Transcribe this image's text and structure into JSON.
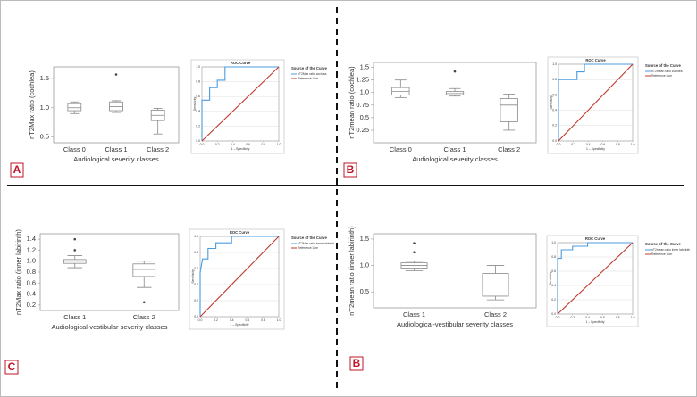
{
  "chart_data": [
    {
      "type": "box",
      "panel_label": "A",
      "ylabel": "nT2Max ratio (cochlea)",
      "xlabel": "Audiological severity classes",
      "categories": [
        "Class 0",
        "Class 1",
        "Class 2"
      ],
      "ylim": [
        0.4,
        1.7
      ],
      "yticks": [
        0.5,
        {
          "value": 1,
          "label": "1.0"
        },
        1.5
      ],
      "boxes": [
        {
          "whisker_low": 0.9,
          "q1": 0.95,
          "median": 1.0,
          "q3": 1.07,
          "whisker_high": 1.1,
          "outliers": []
        },
        {
          "whisker_low": 0.92,
          "q1": 0.95,
          "median": 1.02,
          "q3": 1.1,
          "whisker_high": 1.12,
          "outliers": [
            1.57
          ]
        },
        {
          "whisker_low": 0.55,
          "q1": 0.78,
          "median": 0.87,
          "q3": 0.96,
          "whisker_high": 0.99,
          "outliers": []
        }
      ]
    },
    {
      "type": "roc",
      "title": "ROC Curve",
      "xlabel": "1 – Specificity",
      "ylabel": "Sensitivity",
      "legend_title": "Source of the Curve",
      "xlim": [
        0,
        1
      ],
      "ylim": [
        0,
        1
      ],
      "xticks": [
        {
          "value": 0,
          "label": "0.0"
        },
        0.2,
        0.4,
        0.6,
        0.8,
        {
          "value": 1,
          "label": "1.0"
        }
      ],
      "yticks": [
        {
          "value": 0,
          "label": "0.0"
        },
        0.2,
        0.4,
        0.6,
        0.8,
        {
          "value": 1,
          "label": "1.0"
        }
      ],
      "grid": true,
      "series": [
        {
          "name": "nT2Max ratio cochlea",
          "color": "#4a9be0",
          "x": [
            0,
            0,
            0.1,
            0.1,
            0.2,
            0.2,
            0.3,
            0.3,
            1
          ],
          "values": [
            0,
            0.55,
            0.55,
            0.72,
            0.72,
            0.82,
            0.82,
            1,
            1
          ]
        },
        {
          "name": "Reference Line",
          "color": "#c0392b",
          "x": [
            0,
            1
          ],
          "values": [
            0,
            1
          ]
        }
      ]
    },
    {
      "type": "box",
      "panel_label": "B",
      "ylabel": "nT2mean ratio (cochlea)",
      "xlabel": "Audiological severity classes",
      "categories": [
        "Class 0",
        "Class 1",
        "Class 2"
      ],
      "ylim": [
        0,
        1.6
      ],
      "yticks": [
        0.25,
        0.5,
        0.75,
        {
          "value": 1,
          "label": "1.0"
        },
        1.25,
        1.5
      ],
      "boxes": [
        {
          "whisker_low": 0.9,
          "q1": 0.95,
          "median": 1.02,
          "q3": 1.1,
          "whisker_high": 1.25,
          "outliers": []
        },
        {
          "whisker_low": 0.93,
          "q1": 0.95,
          "median": 0.98,
          "q3": 1.02,
          "whisker_high": 1.08,
          "outliers": [
            1.42
          ]
        },
        {
          "whisker_low": 0.25,
          "q1": 0.42,
          "median": 0.75,
          "q3": 0.88,
          "whisker_high": 0.97,
          "outliers": []
        }
      ]
    },
    {
      "type": "roc",
      "title": "ROC Curve",
      "xlabel": "1 – Specificity",
      "ylabel": "Sensitivity",
      "legend_title": "Source of the Curve",
      "xlim": [
        0,
        1
      ],
      "ylim": [
        0,
        1
      ],
      "xticks": [
        {
          "value": 0,
          "label": "0.0"
        },
        0.2,
        0.4,
        0.6,
        0.8,
        {
          "value": 1,
          "label": "1.0"
        }
      ],
      "yticks": [
        {
          "value": 0,
          "label": "0.0"
        },
        0.2,
        0.4,
        0.6,
        0.8,
        {
          "value": 1,
          "label": "1.0"
        }
      ],
      "grid": true,
      "series": [
        {
          "name": "nT2mean ratio cochlea",
          "color": "#4a9be0",
          "x": [
            0,
            0,
            0.25,
            0.25,
            0.35,
            0.35,
            1
          ],
          "values": [
            0,
            0.8,
            0.8,
            0.9,
            0.9,
            1,
            1
          ]
        },
        {
          "name": "Reference Line",
          "color": "#c0392b",
          "x": [
            0,
            1
          ],
          "values": [
            0,
            1
          ]
        }
      ]
    },
    {
      "type": "box",
      "panel_label": "C",
      "ylabel": "nT2Max ratio (inner labirinth)",
      "xlabel": "Audiological-vestibular severity classes",
      "categories": [
        "Class 1",
        "Class 2"
      ],
      "ylim": [
        0.1,
        1.5
      ],
      "yticks": [
        0.2,
        0.4,
        0.6,
        0.8,
        {
          "value": 1,
          "label": "1.0"
        },
        1.2,
        1.4
      ],
      "boxes": [
        {
          "whisker_low": 0.88,
          "q1": 0.96,
          "median": 1.0,
          "q3": 1.03,
          "whisker_high": 1.1,
          "outliers": [
            1.2,
            1.4
          ]
        },
        {
          "whisker_low": 0.52,
          "q1": 0.72,
          "median": 0.85,
          "q3": 0.95,
          "whisker_high": 1.0,
          "outliers": [
            0.25
          ]
        }
      ]
    },
    {
      "type": "roc",
      "title": "ROC Curve",
      "xlabel": "1 – Specificity",
      "ylabel": "Sensitivity",
      "legend_title": "Source of the Curve",
      "xlim": [
        0,
        1
      ],
      "ylim": [
        0,
        1
      ],
      "xticks": [
        {
          "value": 0,
          "label": "0.0"
        },
        0.2,
        0.4,
        0.6,
        0.8,
        {
          "value": 1,
          "label": "1.0"
        }
      ],
      "yticks": [
        {
          "value": 0,
          "label": "0.0"
        },
        0.2,
        0.4,
        0.6,
        0.8,
        {
          "value": 1,
          "label": "1.0"
        }
      ],
      "grid": true,
      "series": [
        {
          "name": "nT2Max ratio inner labirinth",
          "color": "#4a9be0",
          "x": [
            0,
            0,
            0.03,
            0.1,
            0.1,
            0.2,
            0.2,
            0.4,
            0.4,
            1
          ],
          "values": [
            0,
            0.55,
            0.72,
            0.72,
            0.85,
            0.85,
            0.92,
            0.92,
            1,
            1
          ]
        },
        {
          "name": "Reference Line",
          "color": "#c0392b",
          "x": [
            0,
            1
          ],
          "values": [
            0,
            1
          ]
        }
      ]
    },
    {
      "type": "box",
      "panel_label": "B",
      "ylabel": "nT2mean ratio (inner labirinth)",
      "xlabel": "Audiological-vestibular severity classes",
      "categories": [
        "Class 1",
        "Class 2"
      ],
      "ylim": [
        0.2,
        1.6
      ],
      "yticks": [
        0.5,
        {
          "value": 1,
          "label": "1.0"
        },
        1.5
      ],
      "boxes": [
        {
          "whisker_low": 0.9,
          "q1": 0.95,
          "median": 1.0,
          "q3": 1.05,
          "whisker_high": 1.08,
          "outliers": [
            1.25,
            1.42
          ]
        },
        {
          "whisker_low": 0.35,
          "q1": 0.42,
          "median": 0.78,
          "q3": 0.85,
          "whisker_high": 1.0,
          "outliers": []
        }
      ]
    },
    {
      "type": "roc",
      "title": "ROC Curve",
      "xlabel": "1 – Specificity",
      "ylabel": "Sensitivity",
      "legend_title": "Source of the Curve",
      "xlim": [
        0,
        1
      ],
      "ylim": [
        0,
        1
      ],
      "xticks": [
        {
          "value": 0,
          "label": "0.0"
        },
        0.2,
        0.4,
        0.6,
        0.8,
        {
          "value": 1,
          "label": "1.0"
        }
      ],
      "yticks": [
        {
          "value": 0,
          "label": "0.0"
        },
        0.2,
        0.4,
        0.6,
        0.8,
        {
          "value": 1,
          "label": "1.0"
        }
      ],
      "grid": true,
      "series": [
        {
          "name": "nT2mean ratio inner labirinth",
          "color": "#4a9be0",
          "x": [
            0,
            0,
            0.05,
            0.05,
            0.2,
            0.2,
            0.4,
            0.4,
            1
          ],
          "values": [
            0,
            0.78,
            0.78,
            0.9,
            0.9,
            0.95,
            0.95,
            1,
            1
          ]
        },
        {
          "name": "Reference Line",
          "color": "#c0392b",
          "x": [
            0,
            1
          ],
          "values": [
            0,
            1
          ]
        }
      ]
    }
  ]
}
